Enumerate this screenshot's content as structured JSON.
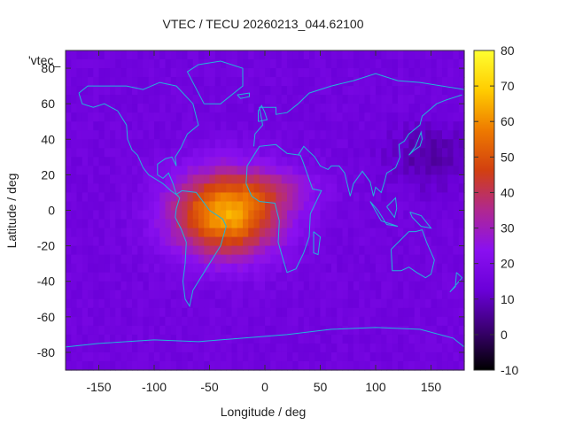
{
  "chart_data": {
    "type": "heatmap",
    "title": "VTEC / TECU 20260213_044.62100",
    "xlabel": "Longitude / deg",
    "ylabel": "Latitude / deg",
    "xlim": [
      -180,
      180
    ],
    "ylim": [
      -90,
      90
    ],
    "x_ticks": [
      -150,
      -100,
      -50,
      0,
      50,
      100,
      150
    ],
    "y_ticks": [
      80,
      60,
      40,
      20,
      0,
      -20,
      -40,
      -60,
      -80
    ],
    "legend_entry": "'vtec_",
    "colorbar": {
      "range": [
        -10,
        80
      ],
      "ticks": [
        80,
        70,
        60,
        50,
        40,
        30,
        20,
        10,
        0,
        -10
      ],
      "colormap": [
        "#000000",
        "#3a0070",
        "#6a00d8",
        "#8a10f0",
        "#b02890",
        "#d24010",
        "#ee7a00",
        "#ffcc00",
        "#ffff30"
      ]
    },
    "background_value": 15,
    "anomaly": {
      "center_lon": -35,
      "center_lat": -2,
      "peak_value": 64,
      "lon_halfwidth": 55,
      "lat_halfwidth": 27
    },
    "coastline_color": "#22b5d9"
  }
}
